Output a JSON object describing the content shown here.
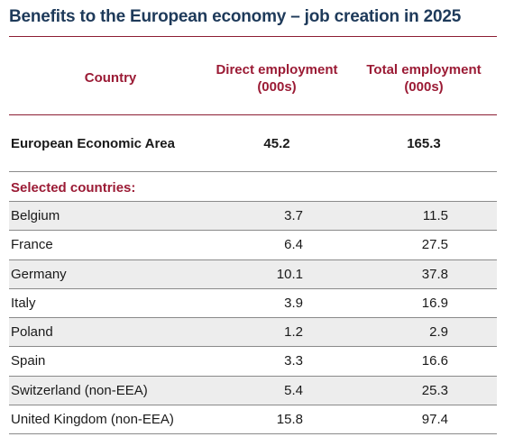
{
  "title": "Benefits to the European economy – job creation in 2025",
  "table": {
    "headers": {
      "country": "Country",
      "direct": "Direct employment\n(000s)",
      "total": "Total employment\n(000s)"
    },
    "eea": {
      "name": "European Economic Area",
      "direct": "45.2",
      "total": "165.3"
    },
    "section_label": "Selected countries:",
    "rows": [
      {
        "name": "Belgium",
        "direct": "3.7",
        "total": "11.5"
      },
      {
        "name": "France",
        "direct": "6.4",
        "total": "27.5"
      },
      {
        "name": "Germany",
        "direct": "10.1",
        "total": "37.8"
      },
      {
        "name": "Italy",
        "direct": "3.9",
        "total": "16.9"
      },
      {
        "name": "Poland",
        "direct": "1.2",
        "total": "2.9"
      },
      {
        "name": "Spain",
        "direct": "3.3",
        "total": "16.6"
      },
      {
        "name": "Switzerland (non-EEA)",
        "direct": "5.4",
        "total": "25.3"
      },
      {
        "name": "United Kingdom (non-EEA)",
        "direct": "15.8",
        "total": "97.4"
      }
    ]
  },
  "colors": {
    "title": "#1e3a5a",
    "accent": "#9b1b35",
    "row_shade": "#ededed"
  }
}
